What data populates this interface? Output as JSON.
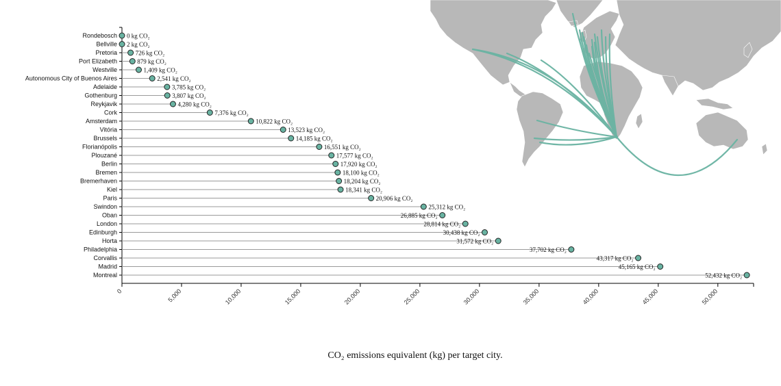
{
  "colors": {
    "accent": "#69b3a2",
    "land": "#b8b8b8",
    "axis": "#000000",
    "stem": "#9a9a9a"
  },
  "map": {
    "origin_city": ""
  },
  "caption": "CO₂ emissions equivalent (kg) per target city.",
  "chart_data": {
    "type": "lollipop",
    "orientation": "horizontal",
    "value_unit": "kg CO₂",
    "categories": [
      "Rondebosch",
      "Bellville",
      "Pretoria",
      "Port Elizabeth",
      "Westville",
      "Autonomous City of Buenos Aires",
      "Adelaide",
      "Gothenburg",
      "Reykjavik",
      "Cork",
      "Amsterdam",
      "Vitória",
      "Brussels",
      "Florianópolis",
      "Plouzané",
      "Berlin",
      "Bremen",
      "Bremerhaven",
      "Kiel",
      "Paris",
      "Swindon",
      "Oban",
      "London",
      "Edinburgh",
      "Horta",
      "Philadelphia",
      "Corvallis",
      "Madrid",
      "Montreal"
    ],
    "values": [
      0,
      2,
      726,
      879,
      1409,
      2541,
      3785,
      3807,
      4280,
      7376,
      10822,
      13523,
      14185,
      16551,
      17577,
      17920,
      18100,
      18204,
      18341,
      20906,
      25312,
      26885,
      28814,
      30438,
      31572,
      37702,
      43317,
      45165,
      52432
    ],
    "value_labels": [
      "0 kg CO₂",
      "2 kg CO₂",
      "726 kg CO₂",
      "879 kg CO₂",
      "1,409 kg CO₂",
      "2,541 kg CO₂",
      "3,785 kg CO₂",
      "3,807 kg CO₂",
      "4,280 kg CO₂",
      "7,376 kg CO₂",
      "10,822 kg CO₂",
      "13,523 kg CO₂",
      "14,185 kg CO₂",
      "16,551 kg CO₂",
      "17,577 kg CO₂",
      "17,920 kg CO₂",
      "18,100 kg CO₂",
      "18,204 kg CO₂",
      "18,341 kg CO₂",
      "20,906 kg CO₂",
      "25,312 kg CO₂",
      "26,885 kg CO₂",
      "28,814 kg CO₂",
      "30,438 kg CO₂",
      "31,572 kg CO₂",
      "37,702 kg CO₂",
      "43,317 kg CO₂",
      "45,165 kg CO₂",
      "52,432 kg CO₂"
    ],
    "xlim": [
      0,
      53000
    ],
    "xticks": [
      0,
      5000,
      10000,
      15000,
      20000,
      25000,
      30000,
      35000,
      40000,
      45000,
      50000
    ],
    "xtick_labels": [
      "0",
      "5,000",
      "10,000",
      "15,000",
      "20,000",
      "25,000",
      "30,000",
      "35,000",
      "40,000",
      "45,000",
      "50,000"
    ],
    "xlabel": "",
    "ylabel": "",
    "grid": false,
    "label_rule": "value labels right of the dot; left of the dot for values above 25,500"
  }
}
